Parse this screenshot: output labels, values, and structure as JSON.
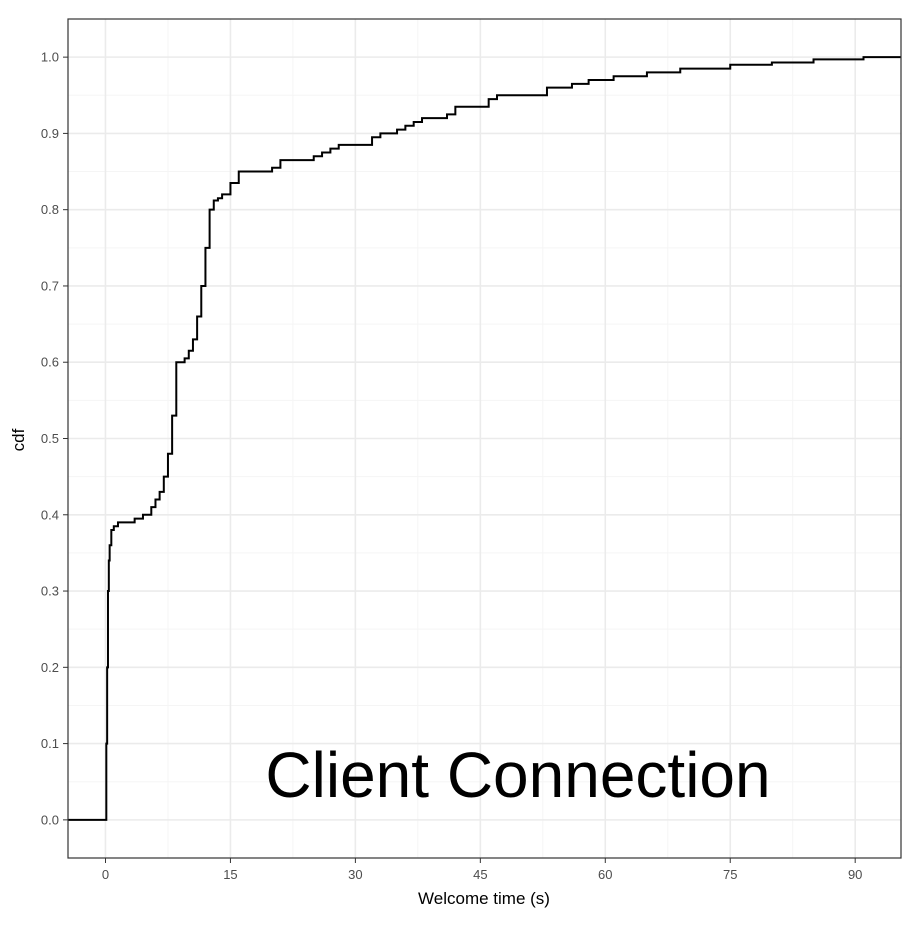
{
  "chart_data": {
    "type": "line",
    "title": "",
    "annotation": "Client Connection",
    "xlabel": "Welcome time (s)",
    "ylabel": "cdf",
    "xlim": [
      -4.5,
      95.5
    ],
    "ylim": [
      -0.05,
      1.05
    ],
    "x_ticks": [
      0,
      15,
      30,
      45,
      60,
      75,
      90
    ],
    "x_tick_labels": [
      "0",
      "15",
      "30",
      "45",
      "60",
      "75",
      "90"
    ],
    "y_ticks": [
      0.0,
      0.1,
      0.2,
      0.3,
      0.4,
      0.5,
      0.6,
      0.7,
      0.8,
      0.9,
      1.0
    ],
    "y_tick_labels": [
      "0.0",
      "0.1",
      "0.2",
      "0.3",
      "0.4",
      "0.5",
      "0.6",
      "0.7",
      "0.8",
      "0.9",
      "1.0"
    ],
    "grid": true,
    "theme": "bw",
    "colors": {
      "line": "#000000",
      "grid_major": "#ebebeb",
      "grid_minor": "#f5f5f5",
      "panel_border": "#333333",
      "text": "#4d4d4d"
    },
    "series": [
      {
        "step": true,
        "x": [
          -4.5,
          0,
          0.1,
          0.2,
          0.3,
          0.4,
          0.5,
          0.7,
          1.0,
          1.5,
          2.0,
          3.5,
          4.5,
          5.5,
          6.0,
          6.5,
          7.0,
          7.5,
          8.0,
          8.5,
          9.0,
          9.5,
          10.0,
          10.5,
          11.0,
          11.5,
          12.0,
          12.5,
          13.0,
          13.5,
          14.0,
          15.0,
          16.0,
          17.0,
          20.0,
          21.0,
          25.0,
          26.0,
          27.0,
          28.0,
          32.0,
          33.0,
          35.0,
          36.0,
          37.0,
          38.0,
          41.0,
          42.0,
          46.0,
          47.0,
          48.0,
          53.0,
          56.0,
          58.0,
          61.0,
          65.0,
          69.0,
          75.0,
          80.0,
          85.0,
          91.0,
          95.5
        ],
        "y": [
          0.0,
          0.0,
          0.1,
          0.2,
          0.3,
          0.34,
          0.36,
          0.38,
          0.385,
          0.39,
          0.39,
          0.395,
          0.4,
          0.41,
          0.42,
          0.43,
          0.45,
          0.48,
          0.53,
          0.6,
          0.6,
          0.605,
          0.615,
          0.63,
          0.66,
          0.7,
          0.75,
          0.8,
          0.812,
          0.815,
          0.82,
          0.835,
          0.85,
          0.85,
          0.855,
          0.865,
          0.87,
          0.875,
          0.88,
          0.885,
          0.895,
          0.9,
          0.905,
          0.91,
          0.915,
          0.92,
          0.925,
          0.935,
          0.945,
          0.95,
          0.95,
          0.96,
          0.965,
          0.97,
          0.975,
          0.98,
          0.985,
          0.99,
          0.993,
          0.997,
          1.0,
          1.0
        ]
      }
    ]
  }
}
